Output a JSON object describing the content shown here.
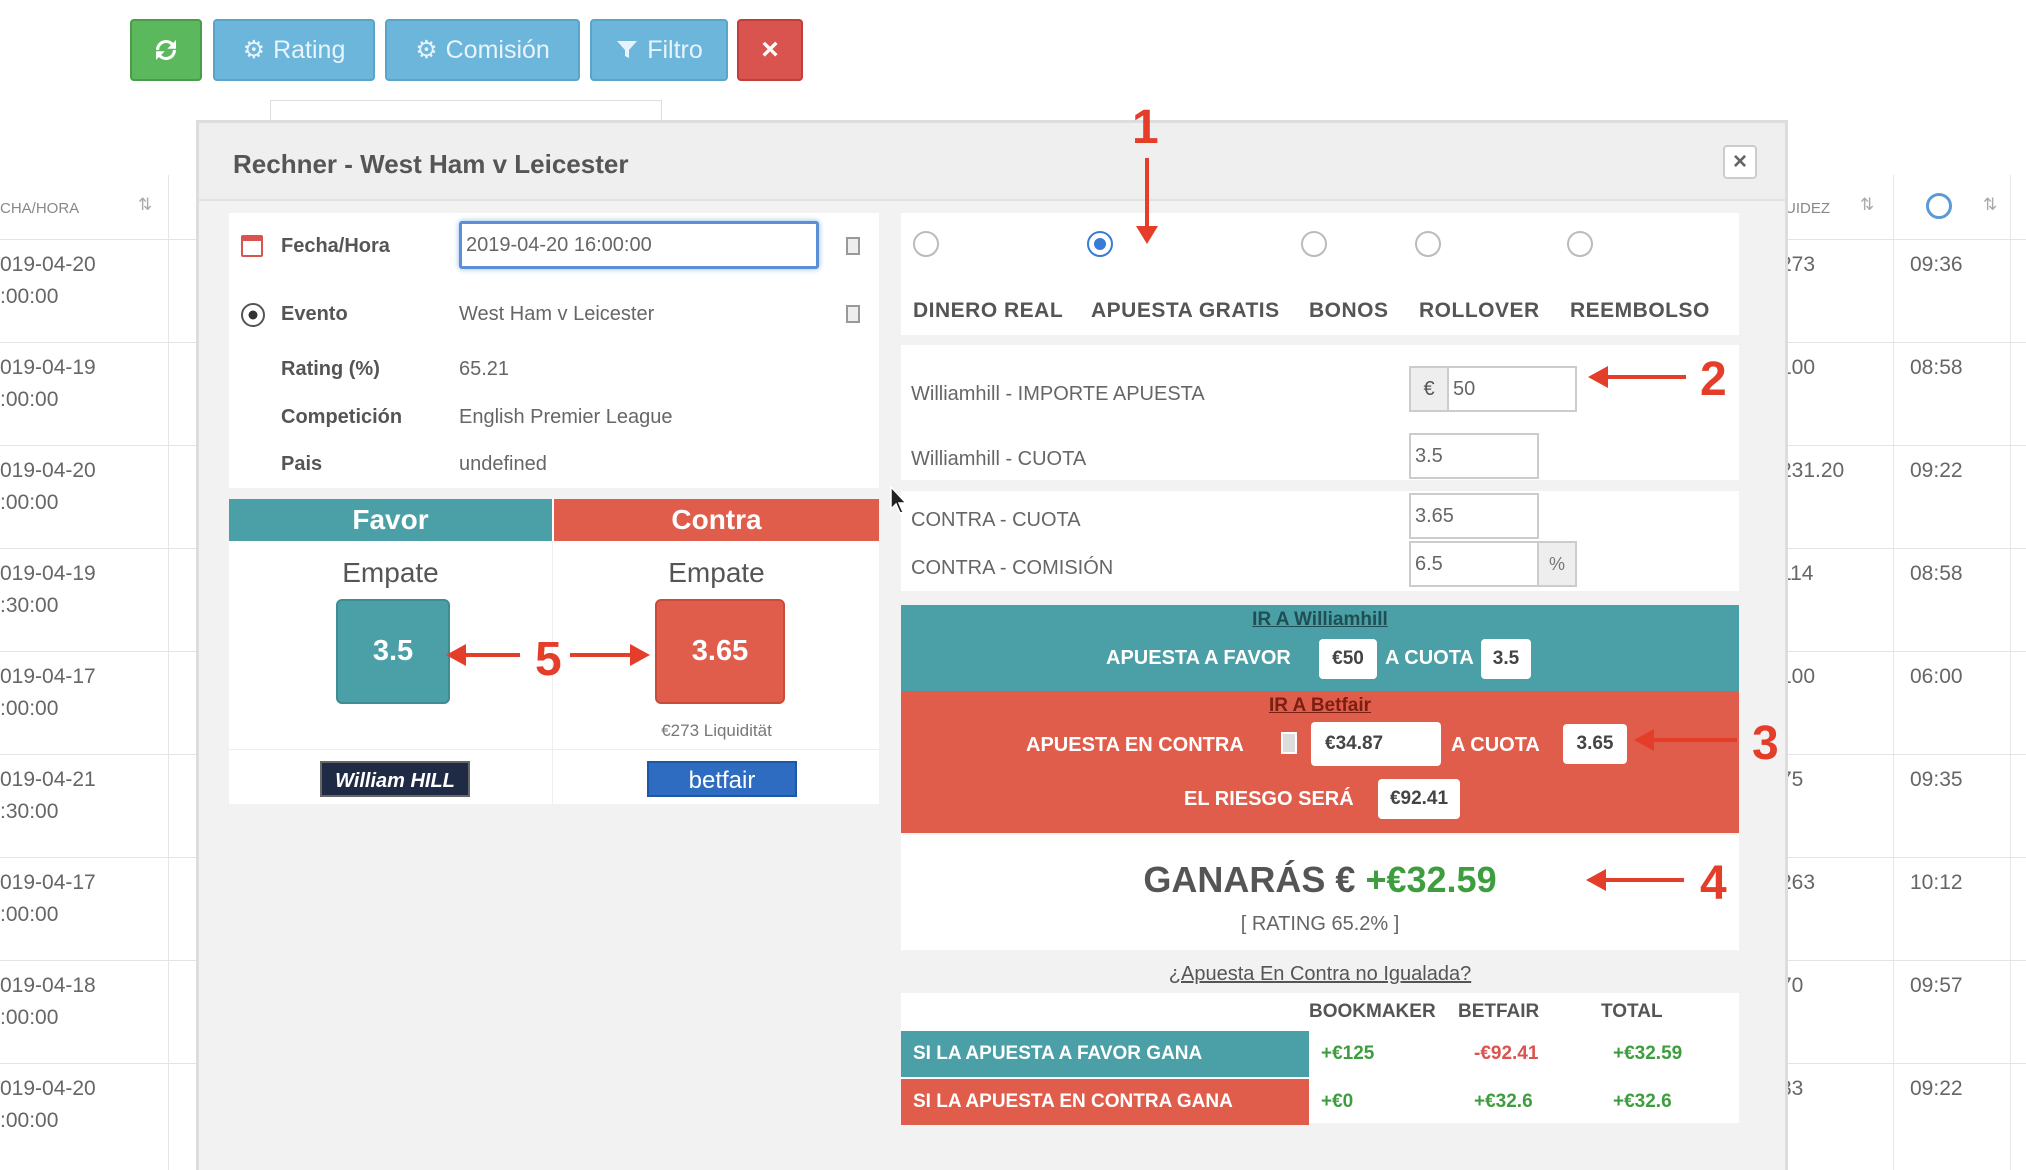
{
  "toolbar": {
    "refresh_icon": "refresh-icon",
    "rating_label": "Rating",
    "comision_label": "Comisión",
    "filtro_label": "Filtro",
    "close_label": "×"
  },
  "table": {
    "col_date_header": "CHA/HORA",
    "col_liq_header": "UIDEZ",
    "rows": [
      {
        "date": "019-04-20",
        "time": ":00:00",
        "liq": "273",
        "hour": "09:36"
      },
      {
        "date": "019-04-19",
        "time": ":00:00",
        "liq": "100",
        "hour": "08:58"
      },
      {
        "date": "019-04-20",
        "time": ":00:00",
        "liq": "231.20",
        "hour": "09:22"
      },
      {
        "date": "019-04-19",
        "time": ":30:00",
        "liq": "114",
        "hour": "08:58"
      },
      {
        "date": "019-04-17",
        "time": ":00:00",
        "liq": "100",
        "hour": "06:00"
      },
      {
        "date": "019-04-21",
        "time": ":30:00",
        "liq": "75",
        "hour": "09:35"
      },
      {
        "date": "019-04-17",
        "time": ":00:00",
        "liq": "263",
        "hour": "10:12"
      },
      {
        "date": "019-04-18",
        "time": ":00:00",
        "liq": "70",
        "hour": "09:57"
      },
      {
        "date": "019-04-20",
        "time": ":00:00",
        "liq": "33",
        "hour": "09:22"
      }
    ]
  },
  "modal": {
    "title": "Rechner - West Ham v Leicester",
    "close": "×",
    "info": {
      "fecha_label": "Fecha/Hora",
      "fecha_value": "2019-04-20 16:00:00",
      "evento_label": "Evento",
      "evento_value": "West Ham v Leicester",
      "rating_label": "Rating (%)",
      "rating_value": "65.21",
      "competicion_label": "Competición",
      "competicion_value": "English Premier League",
      "pais_label": "Pais",
      "pais_value": "undefined"
    },
    "favor": {
      "header": "Favor",
      "selection": "Empate",
      "odds": "3.5",
      "bookmaker": "William HILL"
    },
    "contra": {
      "header": "Contra",
      "selection": "Empate",
      "odds": "3.65",
      "liquidity": "€273 Liquidität",
      "exchange": "betfair"
    },
    "modes": [
      "DINERO REAL",
      "APUESTA GRATIS",
      "BONOS",
      "ROLLOVER",
      "REEMBOLSO"
    ],
    "selected_mode": "APUESTA GRATIS",
    "fields": {
      "importe_label": "Williamhill - IMPORTE APUESTA",
      "importe_prefix": "€",
      "importe_value": "50",
      "cuota_label": "Williamhill - CUOTA",
      "cuota_value": "3.5",
      "contra_cuota_label": "CONTRA - CUOTA",
      "contra_cuota_value": "3.65",
      "contra_comision_label": "CONTRA - COMISIÓN",
      "contra_comision_value": "6.5",
      "contra_comision_suffix": "%"
    },
    "favor_box": {
      "link": "IR A Williamhill",
      "text1": "APUESTA A FAVOR",
      "stake": "€50",
      "text2": "A CUOTA",
      "odds": "3.5"
    },
    "contra_box": {
      "link": "IR A Betfair",
      "text1": "APUESTA EN CONTRA",
      "stake": "€34.87",
      "text2": "A CUOTA",
      "odds": "3.65",
      "risk_label": "EL RIESGO SERÁ",
      "risk_value": "€92.41"
    },
    "result": {
      "label": "GANARÁS €",
      "value": "+€32.59",
      "rating": "[ RATING 65.2% ]"
    },
    "unmatched_link": "¿Apuesta En Contra no Igualada?",
    "summary": {
      "headers": [
        "BOOKMAKER",
        "BETFAIR",
        "TOTAL"
      ],
      "rows": [
        {
          "label": "SI LA APUESTA A FAVOR GANA",
          "bookmaker": "+€125",
          "betfair": "-€92.41",
          "total": "+€32.59"
        },
        {
          "label": "SI LA APUESTA EN CONTRA GANA",
          "bookmaker": "+€0",
          "betfair": "+€32.6",
          "total": "+€32.6"
        }
      ]
    }
  },
  "annotations": [
    "1",
    "2",
    "3",
    "4",
    "5"
  ],
  "colors": {
    "teal": "#4b9fa6",
    "coral": "#e05d4b",
    "green_text": "#3e9d3e",
    "red_text": "#d9534f",
    "annotation": "#e43e2b"
  }
}
